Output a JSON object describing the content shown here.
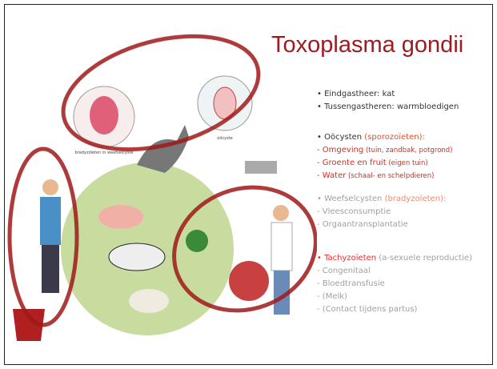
{
  "title": "Toxoplasma gondii",
  "groups": [
    {
      "lines": [
        [
          {
            "text": "• Eindgastheer: kat",
            "color": "#333333"
          }
        ],
        [
          {
            "text": "• Tussengastheren: warmbloedigen",
            "color": "#333333"
          }
        ]
      ]
    },
    {
      "lines": [
        [
          {
            "text": "• Oöcysten ",
            "color": "#333333"
          },
          {
            "text": "(sporozoïeten):",
            "color": "#e0502a"
          }
        ],
        [
          {
            "text": "- Omgeving",
            "color": "#d03020"
          },
          {
            "text": " (tuin, zandbak, potgrond)",
            "color": "#d03020",
            "small": true
          }
        ],
        [
          {
            "text": "- Groente en fruit",
            "color": "#d03020"
          },
          {
            "text": " (eigen tuin)",
            "color": "#d03020",
            "small": true
          }
        ],
        [
          {
            "text": "- Water",
            "color": "#d03020"
          },
          {
            "text": " (schaal- en schelpdieren)",
            "color": "#d03020",
            "small": true
          }
        ]
      ]
    },
    {
      "lines": [
        [
          {
            "text": "• Weefselcysten ",
            "color": "#a0a0a0"
          },
          {
            "text": "(bradyzoïeten)",
            "color": "#f08a70"
          },
          {
            "text": ":",
            "color": "#a0a0a0"
          }
        ],
        [
          {
            "text": "- Vleesconsumptie",
            "color": "#a0a0a0"
          }
        ],
        [
          {
            "text": "- Orgaantransplantatie",
            "color": "#a0a0a0"
          }
        ]
      ]
    },
    {
      "lines": [
        [
          {
            "text": "• Tachyzoïeten",
            "color": "#e03030"
          },
          {
            "text": " (a-sexuele reproductie)",
            "color": "#a0a0a0"
          }
        ],
        [
          {
            "text": "- Congenitaal",
            "color": "#a0a0a0"
          }
        ],
        [
          {
            "text": "- Bloedtransfusie",
            "color": "#a0a0a0"
          }
        ],
        [
          {
            "text": "- (Melk)",
            "color": "#a0a0a0"
          }
        ],
        [
          {
            "text": "- (Contact tijdens partus)",
            "color": "#a0a0a0"
          }
        ]
      ]
    }
  ],
  "illustration_labels": {
    "tissue_cyst": "bradyzoïeten in weefselcyste",
    "oocyst": "oöcyste"
  }
}
